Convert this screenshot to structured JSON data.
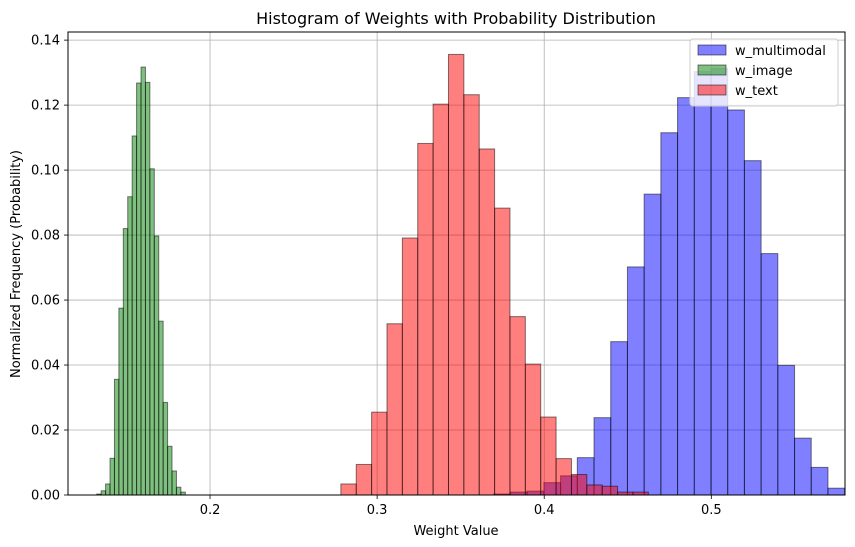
{
  "chart_data": {
    "type": "bar",
    "title": "Histogram of Weights with Probability Distribution",
    "xlabel": "Weight Value",
    "ylabel": "Normalized Frequency (Probability)",
    "xlim": [
      0.115,
      0.58
    ],
    "ylim": [
      0,
      0.1425
    ],
    "xticks": [
      0.2,
      0.3,
      0.4,
      0.5
    ],
    "xtick_labels": [
      "0.2",
      "0.3",
      "0.4",
      "0.5"
    ],
    "yticks": [
      0,
      0.02,
      0.04,
      0.06,
      0.08,
      0.1,
      0.12,
      0.14
    ],
    "ytick_labels": [
      "0.00",
      "0.02",
      "0.04",
      "0.06",
      "0.08",
      "0.10",
      "0.12",
      "0.14"
    ],
    "grid": true,
    "legend_position": "top-right",
    "series": [
      {
        "name": "w_multimodal",
        "color": "#0000ff",
        "bin_start": 0.3698,
        "bin_width": 0.01,
        "values": [
          0.0003,
          0.0009,
          0.0012,
          0.0038,
          0.0059,
          0.0115,
          0.0238,
          0.0472,
          0.0702,
          0.0926,
          0.1115,
          0.1223,
          0.1303,
          0.1313,
          0.1185,
          0.1029,
          0.0743,
          0.0399,
          0.0175,
          0.0085,
          0.0021
        ]
      },
      {
        "name": "w_image",
        "color": "#008000",
        "bin_start": 0.1322,
        "bin_width": 0.00265,
        "values": [
          0.0003,
          0.0013,
          0.0034,
          0.0113,
          0.0356,
          0.0575,
          0.082,
          0.0918,
          0.1105,
          0.1268,
          0.1317,
          0.127,
          0.1004,
          0.0797,
          0.0535,
          0.0285,
          0.015,
          0.0074,
          0.0024,
          0.0009
        ]
      },
      {
        "name": "w_text",
        "color": "#ff0000",
        "bin_start": 0.2783,
        "bin_width": 0.0092,
        "values": [
          0.0034,
          0.0094,
          0.0255,
          0.0527,
          0.0791,
          0.1082,
          0.1203,
          0.1356,
          0.1232,
          0.1065,
          0.0883,
          0.0549,
          0.0403,
          0.024,
          0.0112,
          0.0063,
          0.0031,
          0.0027,
          0.0009,
          0.0009
        ]
      }
    ]
  }
}
